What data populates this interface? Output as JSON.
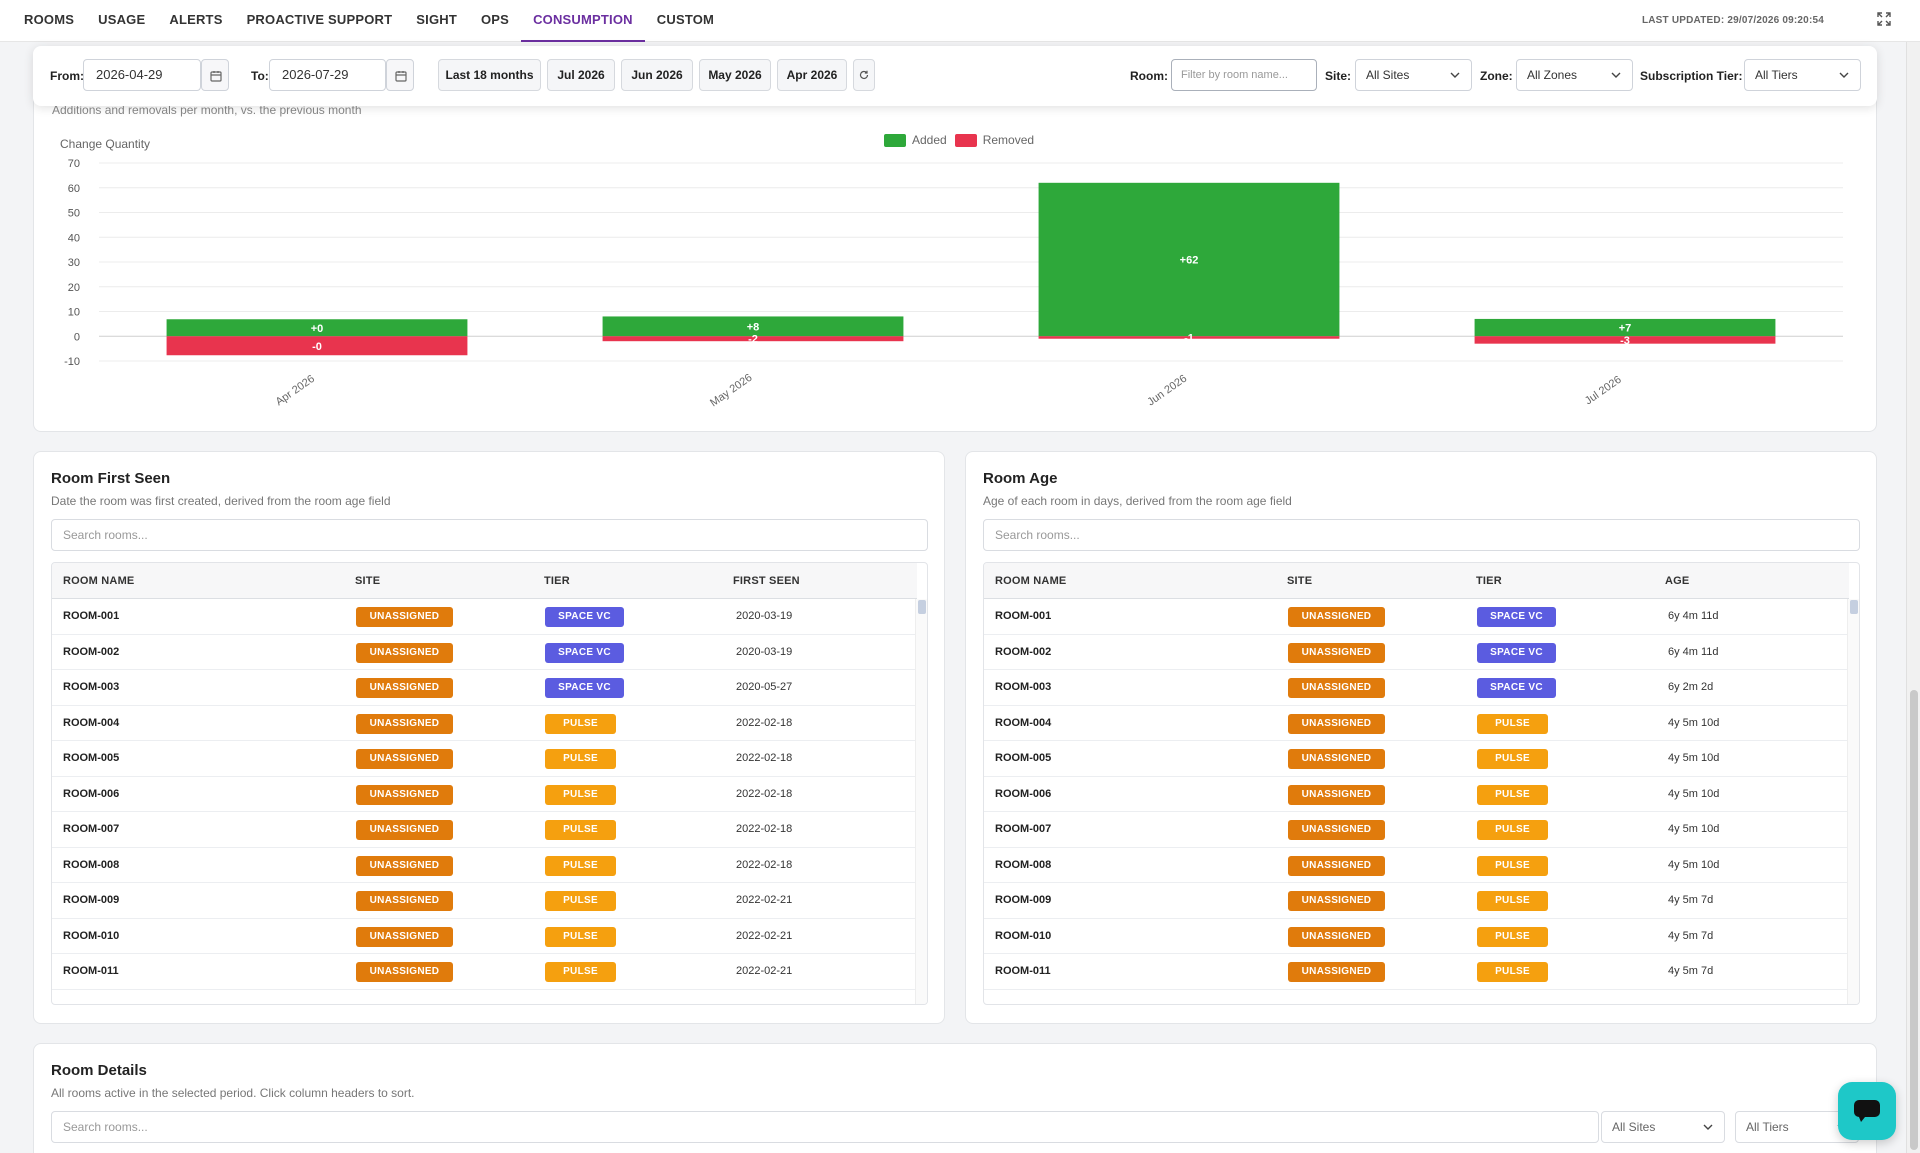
{
  "nav": {
    "tabs": [
      "ROOMS",
      "USAGE",
      "ALERTS",
      "PROACTIVE SUPPORT",
      "SIGHT",
      "OPS",
      "CONSUMPTION",
      "CUSTOM"
    ],
    "active_tab": "CONSUMPTION",
    "last_updated": "LAST UPDATED: 29/07/2026 09:20:54"
  },
  "filters": {
    "from_label": "From:",
    "from_value": "2026-04-29",
    "to_label": "To:",
    "to_value": "2026-07-29",
    "quick_ranges": [
      "Last 18 months",
      "Jul 2026",
      "Jun 2026",
      "May 2026",
      "Apr 2026"
    ],
    "room_label": "Room:",
    "room_placeholder": "Filter by room name...",
    "site_label": "Site:",
    "site_value": "All Sites",
    "zone_label": "Zone:",
    "zone_value": "All Zones",
    "tier_label": "Subscription Tier:",
    "tier_value": "All Tiers"
  },
  "chart_section": {
    "subtitle": "Additions and removals per month, vs. the previous month"
  },
  "chart_data": {
    "type": "bar",
    "title": "",
    "ylabel": "Change Quantity",
    "xlabel": "",
    "categories": [
      "Apr 2026",
      "May 2026",
      "Jun 2026",
      "Jul 2026"
    ],
    "series": [
      {
        "name": "Added",
        "values": [
          0,
          8,
          62,
          7
        ],
        "labels": [
          "+0",
          "+8",
          "+62",
          "+7"
        ],
        "color": "#2ea83a"
      },
      {
        "name": "Removed",
        "values": [
          0,
          -2,
          -1,
          -3
        ],
        "labels": [
          "-0",
          "-2",
          "-1",
          "-3"
        ],
        "color": "#e8344e"
      }
    ],
    "ylim": [
      -10,
      70
    ],
    "yticks": [
      -10,
      0,
      10,
      20,
      30,
      40,
      50,
      60,
      70
    ],
    "grid": true,
    "legend": "top-center",
    "stacked": true
  },
  "first_seen": {
    "title": "Room First Seen",
    "subtitle": "Date the room was first created, derived from the room age field",
    "search_placeholder": "Search rooms...",
    "columns": [
      "ROOM NAME",
      "SITE",
      "TIER",
      "FIRST SEEN"
    ],
    "rows": [
      {
        "name": "ROOM-001",
        "site": "UNASSIGNED",
        "tier": "SPACE VC",
        "value": "2020-03-19"
      },
      {
        "name": "ROOM-002",
        "site": "UNASSIGNED",
        "tier": "SPACE VC",
        "value": "2020-03-19"
      },
      {
        "name": "ROOM-003",
        "site": "UNASSIGNED",
        "tier": "SPACE VC",
        "value": "2020-05-27"
      },
      {
        "name": "ROOM-004",
        "site": "UNASSIGNED",
        "tier": "PULSE",
        "value": "2022-02-18"
      },
      {
        "name": "ROOM-005",
        "site": "UNASSIGNED",
        "tier": "PULSE",
        "value": "2022-02-18"
      },
      {
        "name": "ROOM-006",
        "site": "UNASSIGNED",
        "tier": "PULSE",
        "value": "2022-02-18"
      },
      {
        "name": "ROOM-007",
        "site": "UNASSIGNED",
        "tier": "PULSE",
        "value": "2022-02-18"
      },
      {
        "name": "ROOM-008",
        "site": "UNASSIGNED",
        "tier": "PULSE",
        "value": "2022-02-18"
      },
      {
        "name": "ROOM-009",
        "site": "UNASSIGNED",
        "tier": "PULSE",
        "value": "2022-02-21"
      },
      {
        "name": "ROOM-010",
        "site": "UNASSIGNED",
        "tier": "PULSE",
        "value": "2022-02-21"
      },
      {
        "name": "ROOM-011",
        "site": "UNASSIGNED",
        "tier": "PULSE",
        "value": "2022-02-21"
      }
    ]
  },
  "room_age": {
    "title": "Room Age",
    "subtitle": "Age of each room in days, derived from the room age field",
    "search_placeholder": "Search rooms...",
    "columns": [
      "ROOM NAME",
      "SITE",
      "TIER",
      "AGE"
    ],
    "rows": [
      {
        "name": "ROOM-001",
        "site": "UNASSIGNED",
        "tier": "SPACE VC",
        "value": "6y 4m 11d"
      },
      {
        "name": "ROOM-002",
        "site": "UNASSIGNED",
        "tier": "SPACE VC",
        "value": "6y 4m 11d"
      },
      {
        "name": "ROOM-003",
        "site": "UNASSIGNED",
        "tier": "SPACE VC",
        "value": "6y 2m 2d"
      },
      {
        "name": "ROOM-004",
        "site": "UNASSIGNED",
        "tier": "PULSE",
        "value": "4y 5m 10d"
      },
      {
        "name": "ROOM-005",
        "site": "UNASSIGNED",
        "tier": "PULSE",
        "value": "4y 5m 10d"
      },
      {
        "name": "ROOM-006",
        "site": "UNASSIGNED",
        "tier": "PULSE",
        "value": "4y 5m 10d"
      },
      {
        "name": "ROOM-007",
        "site": "UNASSIGNED",
        "tier": "PULSE",
        "value": "4y 5m 10d"
      },
      {
        "name": "ROOM-008",
        "site": "UNASSIGNED",
        "tier": "PULSE",
        "value": "4y 5m 10d"
      },
      {
        "name": "ROOM-009",
        "site": "UNASSIGNED",
        "tier": "PULSE",
        "value": "4y 5m 7d"
      },
      {
        "name": "ROOM-010",
        "site": "UNASSIGNED",
        "tier": "PULSE",
        "value": "4y 5m 7d"
      },
      {
        "name": "ROOM-011",
        "site": "UNASSIGNED",
        "tier": "PULSE",
        "value": "4y 5m 7d"
      }
    ]
  },
  "details": {
    "title": "Room Details",
    "subtitle": "All rooms active in the selected period. Click column headers to sort.",
    "search_placeholder": "Search rooms...",
    "site_value": "All Sites",
    "tier_value": "All Tiers"
  },
  "colors": {
    "accent": "#6b2fa0",
    "added": "#2ea83a",
    "removed": "#e8344e",
    "badge_site": "#e07b0c",
    "badge_space_vc": "#5b5ce0",
    "badge_pulse": "#f5a00f",
    "chat": "#1ec8c8"
  },
  "icons": {
    "calendar": "calendar-icon",
    "refresh": "refresh-icon",
    "expand": "expand-icon",
    "chevron": "chevron-down-icon",
    "chat": "chat-icon"
  }
}
